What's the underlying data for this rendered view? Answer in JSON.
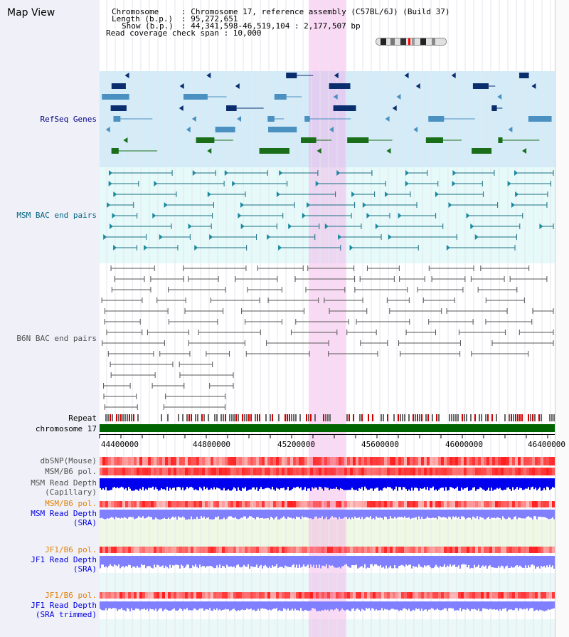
{
  "page": {
    "title": "Map View"
  },
  "info": {
    "chromosome_label": "Chromosome",
    "chromosome_value": ": Chromosome 17, reference assembly (C57BL/6J) (Build 37)",
    "length_label": "Length (b.p.)",
    "length_value": ": 95,272,651",
    "show_label": "Show (b.p.)",
    "show_value": ": 44,341,598-46,519,104 : 2,177,507 bp",
    "coverage": "Read coverage check span : 10,000"
  },
  "tracks": {
    "refseq": "RefSeq Genes",
    "msm_bac": "MSM BAC end pairs",
    "b6n_bac": "B6N BAC end pairs",
    "repeat": "Repeat",
    "chrom": "chromosome 17",
    "dbsnp": "dbSNP(Mouse)",
    "msm_pol": "MSM/B6 pol.",
    "msm_depth_cap_1": "MSM Read Depth",
    "msm_depth_cap_2": "(Capillary)",
    "msm_pol2": "MSM/B6 pol.",
    "msm_depth_sra_1": "MSM Read Depth",
    "msm_depth_sra_2": "(SRA)",
    "jf1_pol": "JF1/B6 pol.",
    "jf1_depth_sra_1": "JF1 Read Depth",
    "jf1_depth_sra_2": "(SRA)",
    "jf1_pol2": "JF1/B6 pol.",
    "jf1_depth_trim_1": "JF1 Read Depth",
    "jf1_depth_trim_2": "(SRA trimmed)"
  },
  "axis": {
    "ticks": [
      "44400000",
      "44800000",
      "45200000",
      "45600000",
      "46000000",
      "46400000"
    ]
  },
  "colors": {
    "refseq_bg": "#d4ecf8",
    "msm_bg": "#e6fafa",
    "highlight": "#f5c8ec",
    "chrom_bar": "#006400",
    "snp": "#ff3030",
    "depth_cap": "#0000ff",
    "depth_sra": "#8080ff"
  }
}
